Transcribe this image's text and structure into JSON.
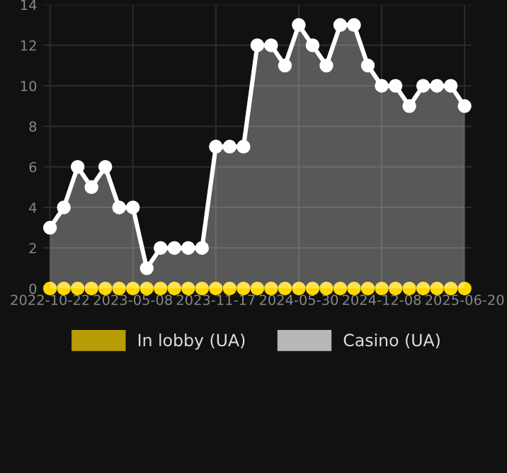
{
  "chart_data": {
    "type": "area",
    "categories": [
      "2022-10-22",
      null,
      null,
      null,
      null,
      null,
      "2023-05-08",
      null,
      null,
      null,
      null,
      null,
      "2023-11-17",
      null,
      null,
      null,
      null,
      null,
      "2024-05-30",
      null,
      null,
      null,
      null,
      null,
      "2024-12-08",
      null,
      null,
      null,
      null,
      null,
      "2025-06-20"
    ],
    "series": [
      {
        "name": "In lobby (UA)",
        "type": "scatter",
        "color": "#ffd700",
        "values": [
          0,
          0,
          0,
          0,
          0,
          0,
          0,
          0,
          0,
          0,
          0,
          0,
          0,
          0,
          0,
          0,
          0,
          0,
          0,
          0,
          0,
          0,
          0,
          0,
          0,
          0,
          0,
          0,
          0,
          0,
          0
        ]
      },
      {
        "name": "Casino (UA)",
        "color": "#ffffff",
        "values": [
          3,
          4,
          6,
          5,
          6,
          4,
          4,
          1,
          2,
          2,
          2,
          2,
          7,
          7,
          7,
          12,
          12,
          11,
          13,
          12,
          11,
          13,
          13,
          11,
          10,
          10,
          9,
          10,
          10,
          10,
          9
        ]
      }
    ],
    "ylim": [
      0,
      14
    ],
    "yticks": [
      0,
      2,
      4,
      6,
      8,
      10,
      12,
      14
    ],
    "grid": true,
    "legend": "bottom",
    "marker": "circle",
    "line_style": "solid"
  }
}
